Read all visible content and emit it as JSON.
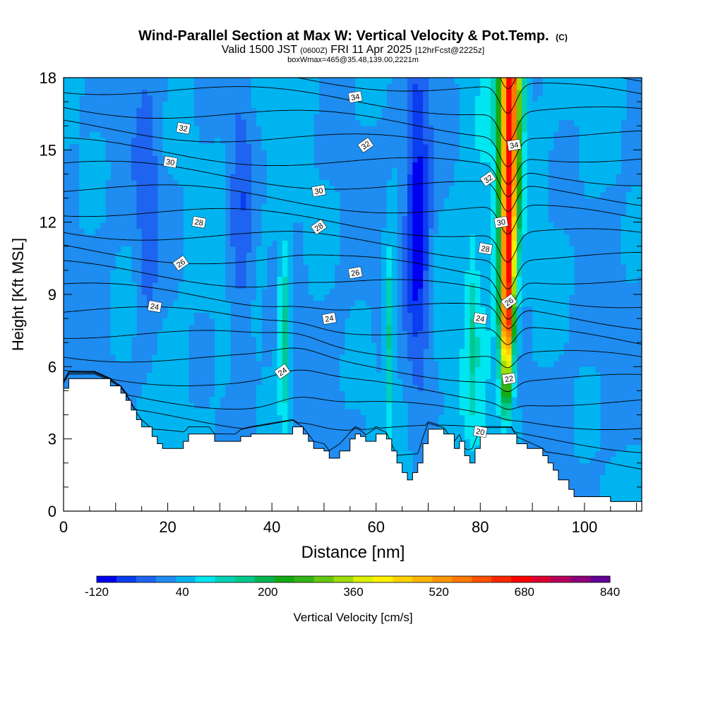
{
  "header": {
    "title": "Wind-Parallel Section at Max W: Vertical Velocity & Pot.Temp.",
    "title_mark": "(C)",
    "sub_valid": "Valid 1500 JST",
    "sub_utc": "(0600Z)",
    "sub_date": "FRI 11 Apr 2025",
    "sub_run": "[12hrFcst@2225z]",
    "box_line": "boxWmax=465@35.48,139.00,2221m"
  },
  "chart_data": {
    "type": "heatmap",
    "xlabel": "Distance [nm]",
    "ylabel": "Height [Kft MSL]",
    "xlim": [
      0,
      111
    ],
    "ylim": [
      0,
      18
    ],
    "x_ticks": [
      0,
      20,
      40,
      60,
      80,
      100
    ],
    "y_ticks": [
      0,
      3,
      6,
      9,
      12,
      15,
      18
    ],
    "colorbar": {
      "label": "Vertical Velocity [cm/s]",
      "min": -120,
      "max": 840,
      "step": 40,
      "tick_labels": [
        "-120",
        "40",
        "200",
        "360",
        "520",
        "680",
        "840"
      ],
      "colors": [
        "#0000f0",
        "#0a3ef0",
        "#1e64f0",
        "#1e8cf0",
        "#00b4f0",
        "#00e6f0",
        "#00d2b4",
        "#00c88c",
        "#00b450",
        "#14aa14",
        "#32b414",
        "#64c814",
        "#a0dc0a",
        "#dcf000",
        "#fff000",
        "#ffd200",
        "#ffb400",
        "#ff9600",
        "#ff7800",
        "#ff5000",
        "#ff2800",
        "#ff0000",
        "#dc0032",
        "#b4005a",
        "#8c0078",
        "#640096"
      ]
    },
    "terrain_kft": [
      [
        0,
        5.1
      ],
      [
        1,
        5.5
      ],
      [
        6,
        5.5
      ],
      [
        9,
        5.2
      ],
      [
        11,
        4.9
      ],
      [
        12,
        4.6
      ],
      [
        13,
        4.2
      ],
      [
        14,
        3.8
      ],
      [
        15,
        3.5
      ],
      [
        17,
        3.1
      ],
      [
        18,
        2.8
      ],
      [
        19,
        2.6
      ],
      [
        22,
        2.6
      ],
      [
        23,
        2.9
      ],
      [
        24,
        3.2
      ],
      [
        28,
        3.2
      ],
      [
        29,
        2.9
      ],
      [
        33,
        2.9
      ],
      [
        34,
        3.1
      ],
      [
        36,
        3.2
      ],
      [
        44,
        3.5
      ],
      [
        46,
        3.2
      ],
      [
        47,
        2.9
      ],
      [
        48,
        2.6
      ],
      [
        50,
        2.5
      ],
      [
        51,
        2.2
      ],
      [
        53,
        2.5
      ],
      [
        55,
        3.0
      ],
      [
        56,
        3.2
      ],
      [
        57,
        3.1
      ],
      [
        58,
        2.9
      ],
      [
        60,
        3.2
      ],
      [
        62,
        3.0
      ],
      [
        63,
        2.5
      ],
      [
        64,
        2.0
      ],
      [
        65,
        1.6
      ],
      [
        66,
        1.3
      ],
      [
        67,
        1.6
      ],
      [
        68,
        2.0
      ],
      [
        69,
        2.8
      ],
      [
        70,
        3.4
      ],
      [
        73,
        3.2
      ],
      [
        75,
        2.6
      ],
      [
        76,
        2.9
      ],
      [
        77,
        2.3
      ],
      [
        78,
        2.0
      ],
      [
        79,
        2.6
      ],
      [
        80,
        3.2
      ],
      [
        86,
        3.2
      ],
      [
        87,
        2.8
      ],
      [
        89,
        2.6
      ],
      [
        92,
        2.3
      ],
      [
        93,
        2.0
      ],
      [
        94,
        1.7
      ],
      [
        95,
        1.3
      ],
      [
        97,
        0.9
      ],
      [
        98,
        0.6
      ],
      [
        105,
        0.4
      ],
      [
        111,
        0.4
      ]
    ],
    "updrafts": [
      {
        "x": 85.3,
        "w_max": 680
      },
      {
        "x": 42.3,
        "w_max": 200
      },
      {
        "x": 62.5,
        "w_max": 180
      },
      {
        "x": 78.5,
        "w_max": 120
      }
    ],
    "downdrafts": [
      {
        "x": 68,
        "w_min": -120
      },
      {
        "x": 34,
        "w_min": -40
      },
      {
        "x": 16,
        "w_min": -20
      }
    ],
    "pot_temp_labels": [
      {
        "text": "34",
        "x": 56,
        "y": 17.2
      },
      {
        "text": "32",
        "x": 23,
        "y": 15.9
      },
      {
        "text": "32",
        "x": 58,
        "y": 15.2
      },
      {
        "text": "34",
        "x": 86.5,
        "y": 15.2
      },
      {
        "text": "30",
        "x": 20.5,
        "y": 14.5
      },
      {
        "text": "32",
        "x": 81.5,
        "y": 13.8
      },
      {
        "text": "30",
        "x": 49,
        "y": 13.3
      },
      {
        "text": "28",
        "x": 26,
        "y": 12.0
      },
      {
        "text": "28",
        "x": 49,
        "y": 11.8
      },
      {
        "text": "30",
        "x": 84,
        "y": 12.0
      },
      {
        "text": "28",
        "x": 81,
        "y": 10.9
      },
      {
        "text": "26",
        "x": 22.5,
        "y": 10.3
      },
      {
        "text": "26",
        "x": 56,
        "y": 9.9
      },
      {
        "text": "24",
        "x": 17.5,
        "y": 8.5
      },
      {
        "text": "26",
        "x": 85.5,
        "y": 8.7
      },
      {
        "text": "24",
        "x": 51,
        "y": 8.0
      },
      {
        "text": "24",
        "x": 80,
        "y": 8.0
      },
      {
        "text": "24",
        "x": 42,
        "y": 5.8
      },
      {
        "text": "22",
        "x": 85.5,
        "y": 5.5
      },
      {
        "text": "20",
        "x": 80,
        "y": 3.3
      }
    ]
  }
}
